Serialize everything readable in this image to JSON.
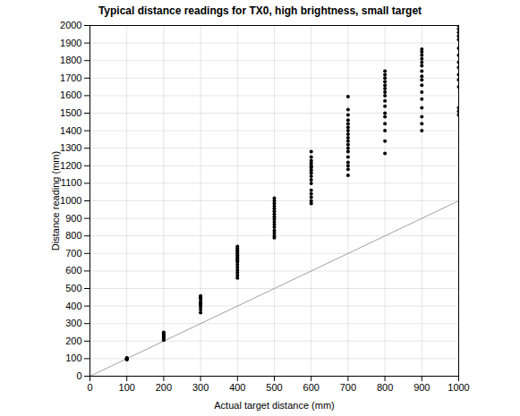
{
  "chart_data": {
    "type": "scatter",
    "title": "Typical distance readings for TX0, high brightness, small target",
    "x_label": "Actual target distance (mm)",
    "y_label": "Distance reading (mm)",
    "xlim": [
      0,
      1000
    ],
    "xticks": [
      0,
      100,
      200,
      300,
      400,
      500,
      600,
      700,
      800,
      900,
      1000
    ],
    "ylim": [
      0,
      2000
    ],
    "yticks": [
      0,
      100,
      200,
      300,
      400,
      500,
      600,
      700,
      800,
      900,
      1000,
      1100,
      1200,
      1300,
      1400,
      1500,
      1600,
      1700,
      1800,
      1900,
      2000
    ],
    "grid": true,
    "series": [
      {
        "type": "line",
        "color": "#a0a0a0",
        "line_style": "solid",
        "x": [
          0,
          1000
        ],
        "values": [
          0,
          1000
        ]
      },
      {
        "type": "scatter",
        "color": "#000000",
        "marker": "circle",
        "x": [
          100,
          100,
          100,
          100,
          100,
          100,
          200,
          200,
          200,
          200,
          200,
          200,
          200,
          200,
          200,
          300,
          300,
          300,
          300,
          300,
          300,
          300,
          300,
          300,
          400,
          400,
          400,
          400,
          400,
          400,
          400,
          400,
          400,
          400,
          400,
          400,
          400,
          400,
          400,
          400,
          500,
          500,
          500,
          500,
          500,
          500,
          500,
          500,
          500,
          500,
          500,
          500,
          500,
          500,
          500,
          500,
          600,
          600,
          600,
          600,
          600,
          600,
          600,
          600,
          600,
          600,
          600,
          600,
          600,
          600,
          600,
          600,
          700,
          700,
          700,
          700,
          700,
          700,
          700,
          700,
          700,
          700,
          700,
          700,
          700,
          700,
          700,
          700,
          700,
          700,
          800,
          800,
          800,
          800,
          800,
          800,
          800,
          800,
          800,
          800,
          800,
          800,
          800,
          800,
          800,
          800,
          900,
          900,
          900,
          900,
          900,
          900,
          900,
          900,
          900,
          900,
          900,
          900,
          900,
          900,
          900,
          900,
          1000,
          1000,
          1000,
          1000,
          1000,
          1000,
          1000,
          1000,
          1000,
          1000,
          1000,
          1000,
          1000,
          1000,
          1000
        ],
        "values": [
          95,
          98,
          100,
          102,
          105,
          97,
          205,
          212,
          218,
          225,
          230,
          235,
          240,
          245,
          250,
          362,
          380,
          395,
          405,
          415,
          425,
          440,
          450,
          458,
          560,
          575,
          590,
          605,
          620,
          635,
          650,
          660,
          670,
          680,
          690,
          700,
          710,
          720,
          730,
          740,
          790,
          800,
          815,
          830,
          850,
          865,
          880,
          895,
          910,
          925,
          940,
          955,
          970,
          985,
          1000,
          1015,
          985,
          1000,
          1020,
          1040,
          1060,
          1100,
          1120,
          1140,
          1160,
          1175,
          1190,
          1200,
          1215,
          1230,
          1250,
          1280,
          1145,
          1180,
          1200,
          1220,
          1250,
          1280,
          1300,
          1320,
          1340,
          1360,
          1380,
          1400,
          1420,
          1440,
          1460,
          1490,
          1520,
          1595,
          1270,
          1340,
          1400,
          1440,
          1480,
          1500,
          1540,
          1570,
          1600,
          1620,
          1640,
          1660,
          1680,
          1700,
          1720,
          1740,
          1400,
          1440,
          1480,
          1530,
          1580,
          1620,
          1660,
          1690,
          1710,
          1740,
          1770,
          1790,
          1810,
          1830,
          1850,
          1865,
          1490,
          1510,
          1530,
          1650,
          1690,
          1720,
          1760,
          1790,
          1830,
          1870,
          1920,
          1940,
          1960,
          1980,
          2000
        ]
      }
    ]
  }
}
